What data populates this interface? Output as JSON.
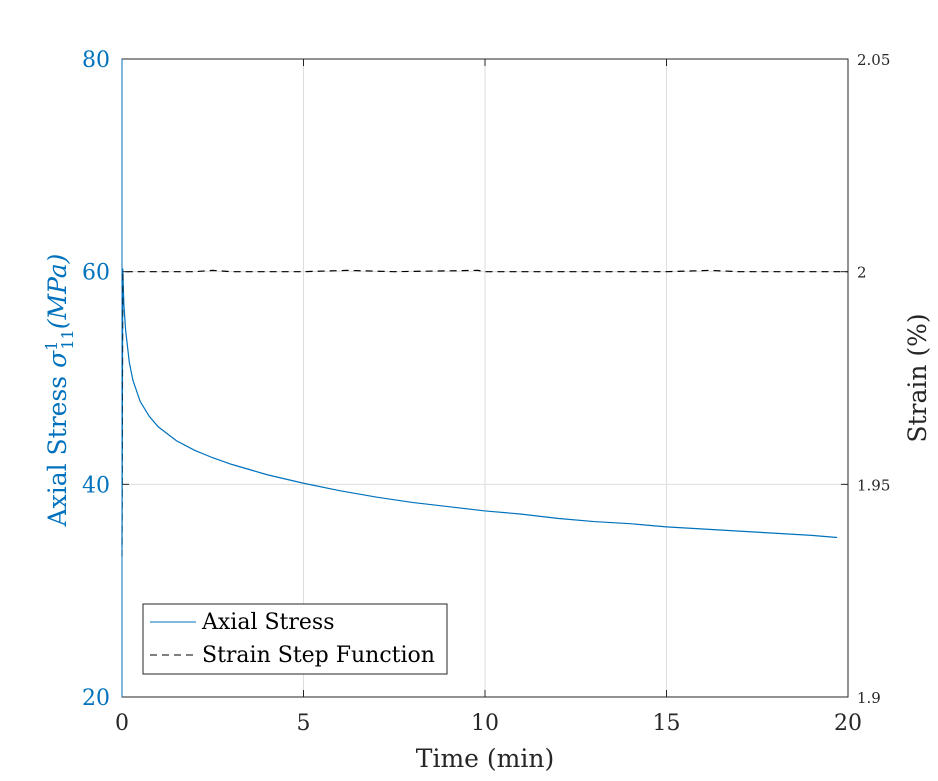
{
  "chart_data": {
    "type": "line",
    "xlabel": "Time (min)",
    "ylabel_left": "Axial Stress σ¹₁₁(MPa)",
    "ylabel_left_parts": {
      "prefix": "Axial Stress ",
      "sigma": "σ",
      "sup": "1",
      "sub": "11",
      "suffix": "(MPa)"
    },
    "ylabel_right": "Strain (%)",
    "xlim": [
      0,
      20
    ],
    "ylim_left": [
      20,
      80
    ],
    "ylim_right": [
      1.9,
      2.05
    ],
    "x_ticks": [
      "0",
      "5",
      "10",
      "15",
      "20"
    ],
    "y_left_ticks": [
      "20",
      "40",
      "60",
      "80"
    ],
    "y_right_ticks": [
      "1.9",
      "1.95",
      "2",
      "2.05"
    ],
    "grid": true,
    "legend_position": "bottom-left",
    "colors": {
      "stress": "#0072BD",
      "strain": "#000000",
      "grid": "#dedede"
    },
    "series": [
      {
        "name": "Axial Stress",
        "axis": "left",
        "style": "solid",
        "x": [
          0,
          0.02,
          0.05,
          0.1,
          0.2,
          0.3,
          0.5,
          0.75,
          1,
          1.5,
          2,
          2.5,
          3,
          4,
          5,
          6,
          7,
          8,
          9,
          10,
          11,
          12,
          13,
          14,
          15,
          16,
          17,
          18,
          19,
          19.7
        ],
        "y": [
          34,
          60.3,
          57,
          54.5,
          51.5,
          49.8,
          47.8,
          46.4,
          45.4,
          44.1,
          43.2,
          42.5,
          41.9,
          40.9,
          40.1,
          39.4,
          38.8,
          38.3,
          37.9,
          37.5,
          37.2,
          36.8,
          36.5,
          36.3,
          36.0,
          35.8,
          35.6,
          35.4,
          35.2,
          35.0
        ]
      },
      {
        "name": "Strain Step Function",
        "axis": "right",
        "style": "dashed",
        "x": [
          0,
          0.02,
          0.05,
          0.2,
          1,
          2,
          2.5,
          3,
          5,
          6.2,
          7.5,
          9.8,
          10,
          12,
          15,
          16.2,
          17,
          19,
          20
        ],
        "y": [
          1.933,
          2.0,
          2.0,
          2.0,
          2.0,
          2.0,
          2.0003,
          2.0,
          2.0,
          2.0003,
          2.0,
          2.0003,
          2.0,
          2.0,
          2.0,
          2.0003,
          2.0,
          2.0,
          2.0
        ]
      }
    ]
  }
}
